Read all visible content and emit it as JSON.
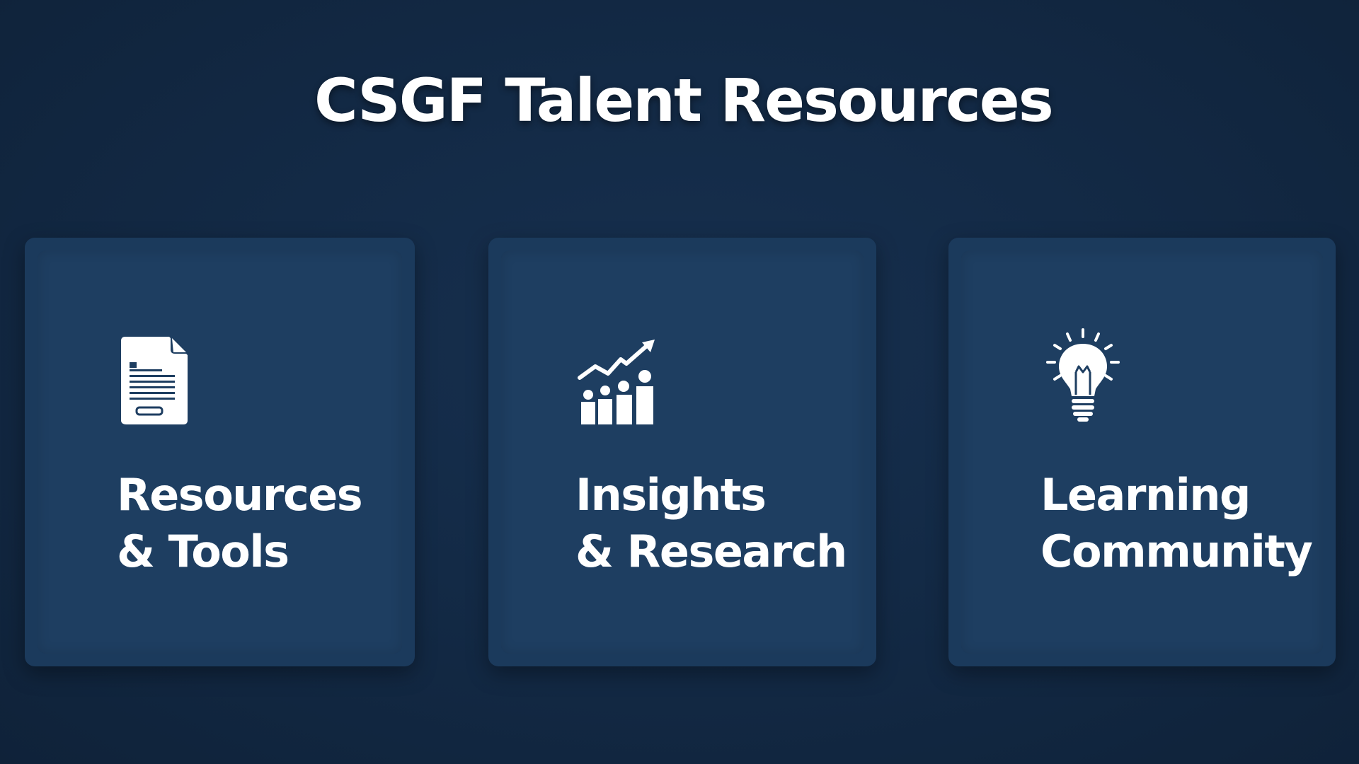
{
  "header": {
    "title": "CSGF Talent Resources"
  },
  "cards": [
    {
      "icon": "document-icon",
      "line1": "Resources",
      "line2": "& Tools"
    },
    {
      "icon": "growth-chart-icon",
      "line1": "Insights",
      "line2": "& Research"
    },
    {
      "icon": "lightbulb-icon",
      "line1": "Learning",
      "line2": "Community"
    }
  ],
  "colors": {
    "background": "#132a46",
    "card": "#1b3a5c",
    "text": "#ffffff"
  }
}
